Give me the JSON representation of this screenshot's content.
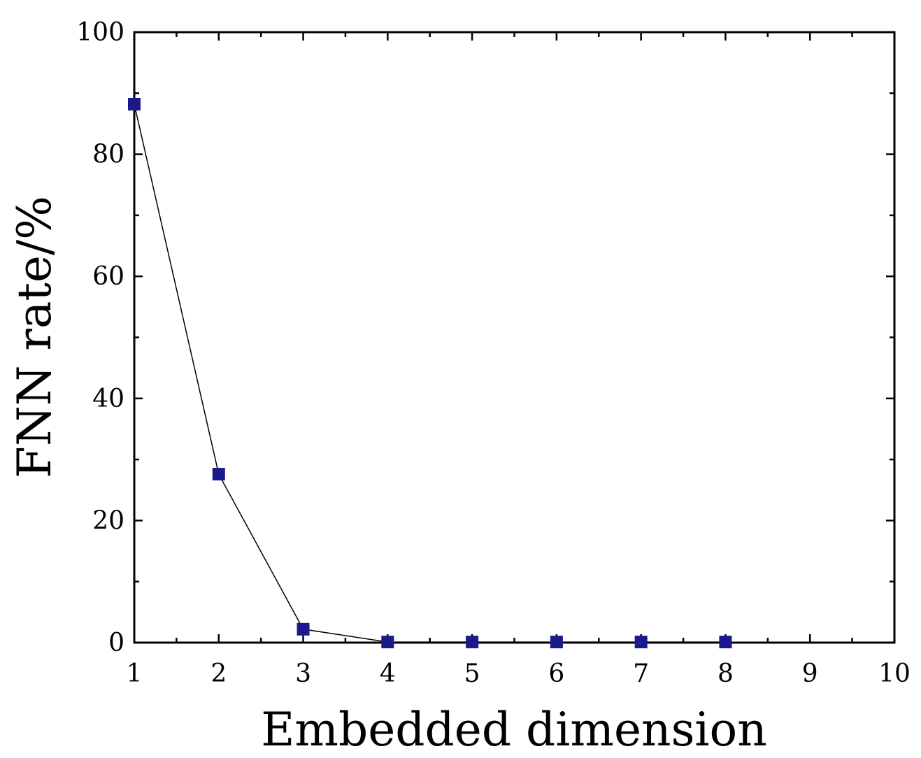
{
  "chart_data": {
    "type": "line",
    "title": "",
    "xlabel": "Embedded dimension",
    "ylabel": "FNN rate/%",
    "xlim": [
      1,
      10
    ],
    "ylim": [
      0,
      100
    ],
    "xticks": [
      "1",
      "2",
      "3",
      "4",
      "5",
      "6",
      "7",
      "8",
      "9",
      "10"
    ],
    "yticks": [
      "0",
      "20",
      "40",
      "60",
      "80",
      "100"
    ],
    "grid": false,
    "legend": "none",
    "series": [
      {
        "color": "#1a1a8c",
        "marker": "square",
        "x": [
          1,
          2,
          3,
          4,
          5,
          6,
          7,
          8
        ],
        "y": [
          88.2,
          27.6,
          2.2,
          0.1,
          0.1,
          0.1,
          0.1,
          0.1
        ]
      }
    ]
  }
}
